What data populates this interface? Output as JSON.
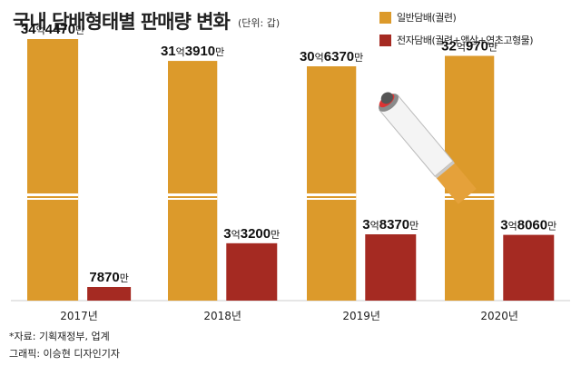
{
  "header": {
    "title": "국내 담배형태별 판매량 변화",
    "unit": "(단위: 갑)"
  },
  "footer": {
    "source": "*자료: 기획재정부, 업계",
    "credit": "그래픽: 이승현 디자인기자"
  },
  "colors": {
    "conventional": "#DC9A2B",
    "electronic": "#A52A22",
    "axis": "#cccccc"
  },
  "chart_data": {
    "type": "bar",
    "title": "국내 담배형태별 판매량 변화",
    "xlabel": "",
    "ylabel": "",
    "axis_break": true,
    "legend_position": "top-right",
    "categories": [
      "2017년",
      "2018년",
      "2019년",
      "2020년"
    ],
    "series": [
      {
        "name": "일반담배(궐련)",
        "values": [
          3444700000,
          3139100000,
          3063700000,
          3209700000
        ],
        "labels": [
          {
            "big": "34",
            "small": "억",
            "big2": "4470",
            "small2": "만"
          },
          {
            "big": "31",
            "small": "억",
            "big2": "3910",
            "small2": "만"
          },
          {
            "big": "30",
            "small": "억",
            "big2": "6370",
            "small2": "만"
          },
          {
            "big": "32",
            "small": "억",
            "big2": "970",
            "small2": "만"
          }
        ]
      },
      {
        "name": "전자담배(궐련+액상+연초고형물)",
        "values": [
          78700000,
          332000000,
          383700000,
          380600000
        ],
        "labels": [
          {
            "big": "",
            "small": "",
            "big2": "7870",
            "small2": "만"
          },
          {
            "big": "3",
            "small": "억",
            "big2": "3200",
            "small2": "만"
          },
          {
            "big": "3",
            "small": "억",
            "big2": "8370",
            "small2": "만"
          },
          {
            "big": "3",
            "small": "억",
            "big2": "8060",
            "small2": "만"
          }
        ]
      }
    ]
  }
}
